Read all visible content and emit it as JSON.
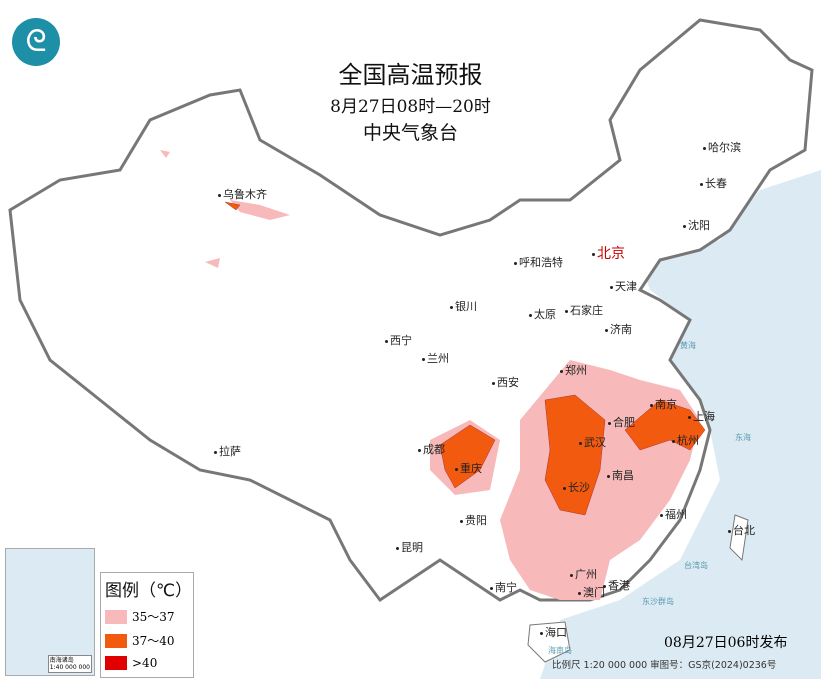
{
  "title": "全国高温预报",
  "subtitle": "8月27日08时—20时",
  "agency": "中央气象台",
  "logo_icon": "cma-logo",
  "cities": [
    {
      "name": "乌鲁木齐"
    },
    {
      "name": "哈尔滨"
    },
    {
      "name": "长春"
    },
    {
      "name": "沈阳"
    },
    {
      "name": "北京",
      "capital": true
    },
    {
      "name": "天津"
    },
    {
      "name": "呼和浩特"
    },
    {
      "name": "石家庄"
    },
    {
      "name": "太原"
    },
    {
      "name": "济南"
    },
    {
      "name": "银川"
    },
    {
      "name": "西宁"
    },
    {
      "name": "兰州"
    },
    {
      "name": "西安"
    },
    {
      "name": "郑州"
    },
    {
      "name": "合肥"
    },
    {
      "name": "南京"
    },
    {
      "name": "上海"
    },
    {
      "name": "武汉"
    },
    {
      "name": "杭州"
    },
    {
      "name": "成都"
    },
    {
      "name": "重庆"
    },
    {
      "name": "长沙"
    },
    {
      "name": "南昌"
    },
    {
      "name": "拉萨"
    },
    {
      "name": "贵阳"
    },
    {
      "name": "福州"
    },
    {
      "name": "台北"
    },
    {
      "name": "昆明"
    },
    {
      "name": "南宁"
    },
    {
      "name": "广州"
    },
    {
      "name": "香港"
    },
    {
      "name": "澳门"
    },
    {
      "name": "海口"
    }
  ],
  "seas": [
    "黄海",
    "东海",
    "台湾岛",
    "东沙群岛",
    "海南岛"
  ],
  "legend": {
    "title": "图例（℃）",
    "items": [
      {
        "label": "35～37",
        "color": "#f7b9b9"
      },
      {
        "label": "37～40",
        "color": "#f25a10"
      },
      {
        "label": ">40",
        "color": "#e00000"
      }
    ]
  },
  "inset": {
    "label": "南海诸岛",
    "scale": "1:40 000 000"
  },
  "issued": "08月27日06时发布",
  "footer": "比例尺 1:20 000 000    审图号：GS京(2024)0236号",
  "colors": {
    "sea": "#dcebf3",
    "land": "#ffffff",
    "border": "#888888"
  }
}
